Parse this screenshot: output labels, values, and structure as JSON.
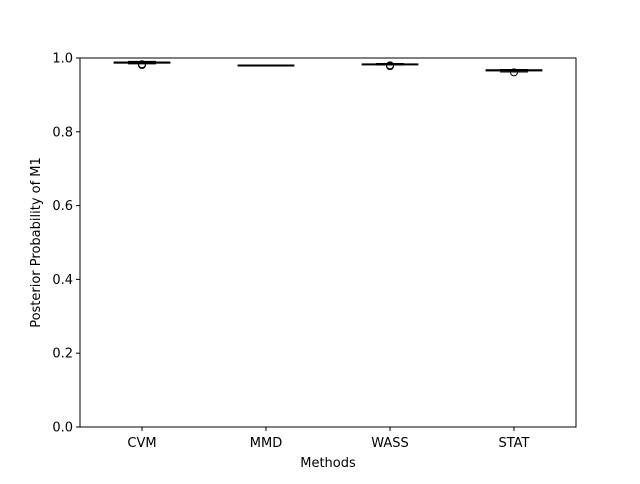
{
  "chart_data": {
    "type": "box",
    "title": "",
    "xlabel": "Methods",
    "ylabel": "Posterior Probability of M1",
    "ylim": [
      0.0,
      1.0
    ],
    "yticks": [
      0.0,
      0.2,
      0.4,
      0.6,
      0.8,
      1.0
    ],
    "ytick_labels": [
      "0.0",
      "0.2",
      "0.4",
      "0.6",
      "0.8",
      "1.0"
    ],
    "grid": false,
    "legend": "none",
    "categories": [
      "CVM",
      "MMD",
      "WASS",
      "STAT"
    ],
    "boxes": [
      {
        "name": "CVM",
        "whisker_low": 0.984,
        "q1": 0.986,
        "median": 0.988,
        "q3": 0.989,
        "whisker_high": 0.991,
        "outliers": [
          0.983,
          0.981
        ]
      },
      {
        "name": "MMD",
        "whisker_low": 0.979,
        "q1": 0.979,
        "median": 0.98,
        "q3": 0.981,
        "whisker_high": 0.981,
        "outliers": []
      },
      {
        "name": "WASS",
        "whisker_low": 0.981,
        "q1": 0.982,
        "median": 0.983,
        "q3": 0.984,
        "whisker_high": 0.985,
        "outliers": [
          0.98,
          0.978
        ]
      },
      {
        "name": "STAT",
        "whisker_low": 0.962,
        "q1": 0.965,
        "median": 0.967,
        "q3": 0.968,
        "whisker_high": 0.969,
        "outliers": [
          0.961
        ]
      }
    ],
    "colors": {
      "box": "#000000",
      "median": "#000000",
      "axes": "#000000",
      "background": "#ffffff"
    }
  }
}
